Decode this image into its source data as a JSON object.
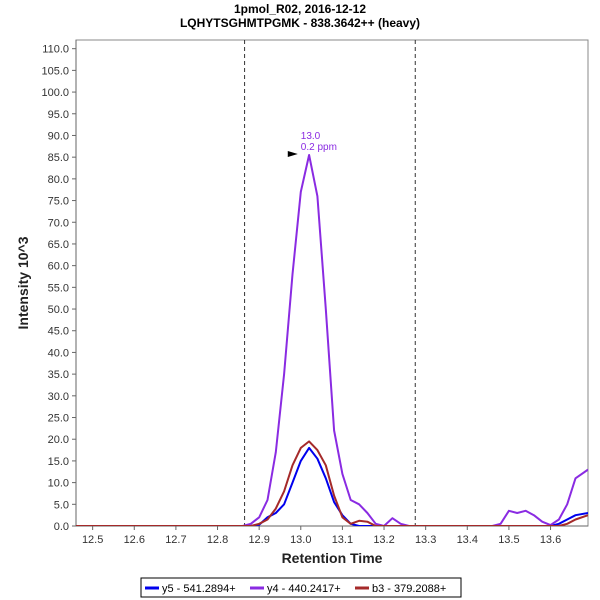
{
  "chart_data": {
    "type": "line",
    "title": "1pmol_R02, 2016-12-12",
    "subtitle": "LQHYTSGHMTPGMK - 838.3642++ (heavy)",
    "xlabel": "Retention Time",
    "ylabel": "Intensity 10^3",
    "xlim": [
      12.46,
      13.69
    ],
    "ylim": [
      0,
      112
    ],
    "xticks": [
      "12.5",
      "12.6",
      "12.7",
      "12.8",
      "12.9",
      "13.0",
      "13.1",
      "13.2",
      "13.3",
      "13.4",
      "13.5",
      "13.6"
    ],
    "yticks": [
      "0.0",
      "5.0",
      "10.0",
      "15.0",
      "20.0",
      "25.0",
      "30.0",
      "35.0",
      "40.0",
      "45.0",
      "50.0",
      "55.0",
      "60.0",
      "65.0",
      "70.0",
      "75.0",
      "80.0",
      "85.0",
      "90.0",
      "95.0",
      "100.0",
      "105.0",
      "110.0"
    ],
    "grid": false,
    "legend_position": "bottom",
    "integration_boundaries": [
      12.865,
      13.275
    ],
    "peak_annotation": {
      "x": 13.0,
      "y": 85.5,
      "label_time": "13.0",
      "label_ppm": "0.2 ppm",
      "color": "#8a2be2"
    },
    "series": [
      {
        "name": "y5 - 541.2894+",
        "color": "#0000ee",
        "x": [
          12.46,
          12.86,
          12.88,
          12.9,
          12.92,
          12.94,
          12.96,
          12.98,
          13.0,
          13.02,
          13.04,
          13.06,
          13.08,
          13.1,
          13.12,
          13.14,
          13.16,
          13.18,
          13.2,
          13.4,
          13.6,
          13.62,
          13.64,
          13.66,
          13.69
        ],
        "y": [
          0,
          0,
          0,
          0.3,
          2,
          3,
          5,
          10,
          15,
          18,
          15.5,
          11,
          5.5,
          2.5,
          0.5,
          0,
          0,
          0,
          0,
          0,
          0,
          0.5,
          1.5,
          2.5,
          3
        ]
      },
      {
        "name": "y4 - 440.2417+",
        "color": "#8a2be2",
        "x": [
          12.46,
          12.86,
          12.88,
          12.9,
          12.92,
          12.94,
          12.96,
          12.98,
          13.0,
          13.02,
          13.04,
          13.06,
          13.08,
          13.1,
          13.12,
          13.14,
          13.16,
          13.18,
          13.2,
          13.22,
          13.24,
          13.26,
          13.4,
          13.46,
          13.48,
          13.5,
          13.52,
          13.54,
          13.56,
          13.58,
          13.6,
          13.62,
          13.64,
          13.66,
          13.69
        ],
        "y": [
          0,
          0,
          0.5,
          2,
          6,
          17,
          35,
          58,
          77,
          85.5,
          76,
          50,
          22,
          12,
          6,
          5,
          3,
          0.5,
          0,
          1.8,
          0.5,
          0,
          0,
          0,
          0.5,
          3.5,
          3,
          3.5,
          2.5,
          1,
          0.2,
          1.5,
          5,
          11,
          13
        ]
      },
      {
        "name": "b3 - 379.2088+",
        "color": "#a52a2a",
        "x": [
          12.46,
          12.86,
          12.88,
          12.9,
          12.92,
          12.94,
          12.96,
          12.98,
          13.0,
          13.02,
          13.04,
          13.06,
          13.08,
          13.1,
          13.12,
          13.14,
          13.16,
          13.18,
          13.2,
          13.4,
          13.6,
          13.62,
          13.64,
          13.66,
          13.69
        ],
        "y": [
          0,
          0,
          0,
          0.5,
          1.5,
          4,
          8,
          14,
          18,
          19.5,
          17.5,
          14,
          7,
          2,
          0.5,
          1.2,
          1,
          0,
          0,
          0,
          0,
          0,
          0.5,
          1.5,
          2.5
        ]
      }
    ]
  }
}
